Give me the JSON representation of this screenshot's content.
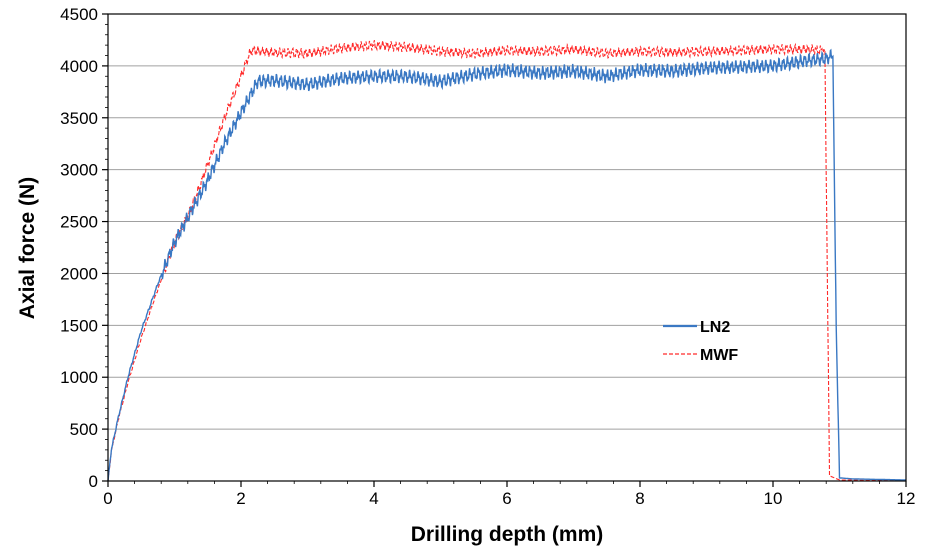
{
  "chart_data": {
    "type": "line",
    "xlabel": "Drilling depth (mm)",
    "ylabel": "Axial force (N)",
    "xlim": [
      0,
      12
    ],
    "ylim": [
      0,
      4500
    ],
    "x_ticks": [
      0,
      2,
      4,
      6,
      8,
      10,
      12
    ],
    "y_ticks": [
      0,
      500,
      1000,
      1500,
      2000,
      2500,
      3000,
      3500,
      4000,
      4500
    ],
    "grid": "horizontal",
    "legend_position": "right-middle",
    "series": [
      {
        "name": "LN2",
        "color": "#3a78c3",
        "style": "solid",
        "points": [
          [
            0,
            0
          ],
          [
            0.05,
            300
          ],
          [
            0.15,
            600
          ],
          [
            0.3,
            1000
          ],
          [
            0.5,
            1450
          ],
          [
            0.75,
            1900
          ],
          [
            1.0,
            2300
          ],
          [
            1.25,
            2600
          ],
          [
            1.5,
            2900
          ],
          [
            1.75,
            3250
          ],
          [
            2.0,
            3550
          ],
          [
            2.25,
            3850
          ],
          [
            2.5,
            3860
          ],
          [
            3.0,
            3820
          ],
          [
            3.5,
            3880
          ],
          [
            4.0,
            3900
          ],
          [
            4.5,
            3900
          ],
          [
            5.0,
            3850
          ],
          [
            5.5,
            3920
          ],
          [
            6.0,
            3960
          ],
          [
            6.5,
            3930
          ],
          [
            7.0,
            3950
          ],
          [
            7.5,
            3900
          ],
          [
            8.0,
            3960
          ],
          [
            8.5,
            3950
          ],
          [
            9.0,
            3980
          ],
          [
            9.5,
            3990
          ],
          [
            10.0,
            4000
          ],
          [
            10.5,
            4050
          ],
          [
            10.8,
            4070
          ],
          [
            10.9,
            4100
          ],
          [
            10.95,
            1500
          ],
          [
            11.0,
            30
          ],
          [
            11.2,
            20
          ],
          [
            12.0,
            10
          ]
        ]
      },
      {
        "name": "MWF",
        "color": "#ff2a2a",
        "style": "dashed",
        "points": [
          [
            0,
            0
          ],
          [
            0.05,
            280
          ],
          [
            0.15,
            580
          ],
          [
            0.3,
            950
          ],
          [
            0.5,
            1380
          ],
          [
            0.75,
            1850
          ],
          [
            1.0,
            2300
          ],
          [
            1.25,
            2620
          ],
          [
            1.5,
            3050
          ],
          [
            1.75,
            3500
          ],
          [
            2.0,
            3900
          ],
          [
            2.15,
            4150
          ],
          [
            2.5,
            4130
          ],
          [
            3.0,
            4120
          ],
          [
            3.5,
            4170
          ],
          [
            4.0,
            4200
          ],
          [
            4.5,
            4180
          ],
          [
            5.0,
            4140
          ],
          [
            5.5,
            4120
          ],
          [
            6.0,
            4150
          ],
          [
            6.5,
            4140
          ],
          [
            7.0,
            4160
          ],
          [
            7.5,
            4120
          ],
          [
            8.0,
            4140
          ],
          [
            8.5,
            4130
          ],
          [
            9.0,
            4140
          ],
          [
            9.5,
            4150
          ],
          [
            10.0,
            4160
          ],
          [
            10.5,
            4160
          ],
          [
            10.78,
            4150
          ],
          [
            10.85,
            50
          ],
          [
            11.0,
            10
          ],
          [
            12.0,
            0
          ]
        ]
      }
    ]
  }
}
